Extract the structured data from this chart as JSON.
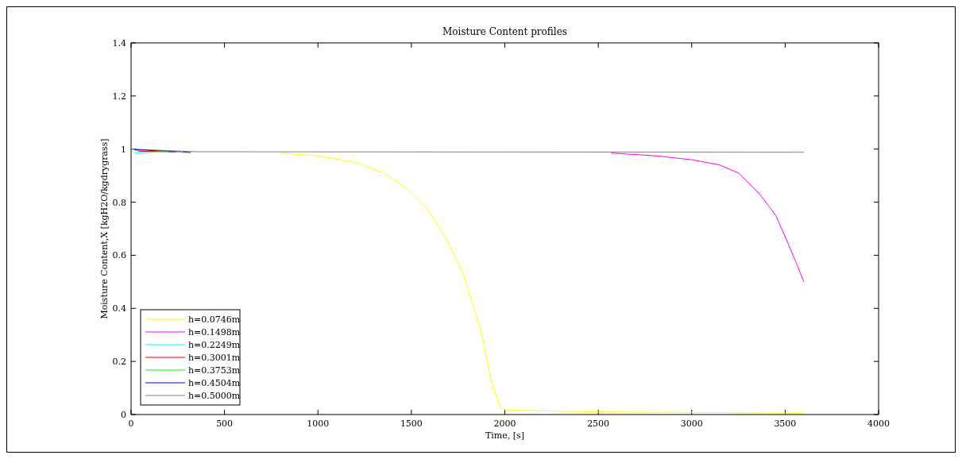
{
  "chart_data": {
    "type": "line",
    "title": "Moisture Content profiles",
    "xlabel": "Time, [s]",
    "ylabel": "Moisture Content,X [kgH2O/kgdrygrass]",
    "xlim": [
      0,
      4000
    ],
    "ylim": [
      0,
      1.4
    ],
    "xticks": [
      0,
      500,
      1000,
      1500,
      2000,
      2500,
      3000,
      3500,
      4000
    ],
    "yticks": [
      0,
      0.2,
      0.4,
      0.6,
      0.8,
      1,
      1.2,
      1.4
    ],
    "grid": false,
    "legend": "bottom left",
    "line_style": "solid",
    "marker": "none",
    "series": [
      {
        "name": "h=0.0746m",
        "color": "#ffff00",
        "x": [
          800,
          1000,
          1200,
          1350,
          1480,
          1580,
          1680,
          1775,
          1875,
          1925,
          1975,
          2000,
          2100,
          2500,
          3000,
          3600
        ],
        "values": [
          0.985,
          0.975,
          0.95,
          0.91,
          0.85,
          0.78,
          0.67,
          0.535,
          0.31,
          0.13,
          0.025,
          0.018,
          0.015,
          0.01,
          0.008,
          0.005
        ]
      },
      {
        "name": "h=0.1498m",
        "color": "#ff00ff",
        "x": [
          2570,
          2800,
          3000,
          3150,
          3250,
          3364,
          3450,
          3506,
          3560,
          3600
        ],
        "values": [
          0.985,
          0.975,
          0.96,
          0.94,
          0.91,
          0.83,
          0.75,
          0.66,
          0.57,
          0.5
        ]
      },
      {
        "name": "h=0.2249m",
        "color": "#00ffff",
        "x": [
          20,
          200
        ],
        "values": [
          0.986,
          0.99
        ]
      },
      {
        "name": "h=0.3001m",
        "color": "#ff0000",
        "x": [
          40,
          240
        ],
        "values": [
          0.992,
          0.989
        ]
      },
      {
        "name": "h=0.3753m",
        "color": "#00ff00",
        "x": [
          20,
          280
        ],
        "values": [
          0.994,
          0.988
        ]
      },
      {
        "name": "h=0.4504m",
        "color": "#0000ff",
        "x": [
          20,
          320
        ],
        "values": [
          0.998,
          0.987
        ]
      },
      {
        "name": "h=0.5000m",
        "color": "#808080",
        "x": [
          0,
          350,
          3600
        ],
        "values": [
          1,
          0.99,
          0.988
        ]
      }
    ]
  }
}
